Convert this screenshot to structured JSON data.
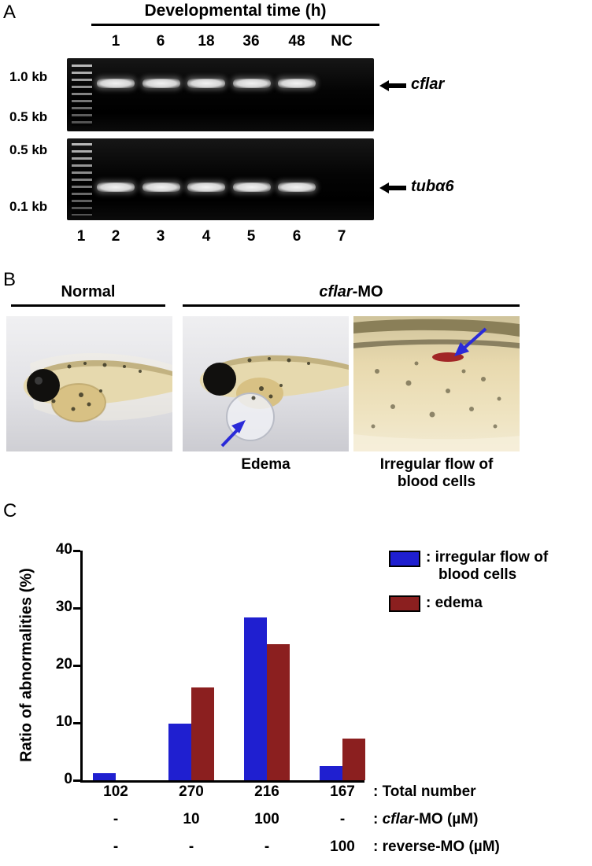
{
  "figure": {
    "panelA_label": "A",
    "panelB_label": "B",
    "panelC_label": "C"
  },
  "panelA": {
    "title": "Developmental time (h)",
    "lane_labels": [
      "1",
      "6",
      "18",
      "36",
      "48",
      "NC"
    ],
    "lane_numbers": [
      "1",
      "2",
      "3",
      "4",
      "5",
      "6",
      "7"
    ],
    "gel1": {
      "marker_top": "1.0 kb",
      "marker_bottom": "0.5 kb",
      "gene": "cflar",
      "bands": [
        1,
        1,
        1,
        1,
        1,
        0
      ]
    },
    "gel2": {
      "marker_top": "0.5 kb",
      "marker_bottom": "0.1 kb",
      "gene": "tubα6",
      "bands": [
        1,
        1,
        1,
        1,
        1,
        0
      ]
    }
  },
  "panelB": {
    "normal_title": "Normal",
    "mo_title_italic": "cflar",
    "mo_title_rest": "-MO",
    "caption_edema": "Edema",
    "caption_flow_line1": "Irregular flow of",
    "caption_flow_line2": "blood cells"
  },
  "panelC": {
    "legend_flow_line1": ": irregular flow of",
    "legend_flow_line2": "blood cells",
    "legend_edema": ": edema"
  },
  "chart_data": {
    "type": "bar",
    "title": "",
    "xlabel": "",
    "ylabel": "Ratio of abnormalities (%)",
    "ylim": [
      0,
      40
    ],
    "yticks": [
      0,
      10,
      20,
      30,
      40
    ],
    "grid": false,
    "legend_position": "top-right",
    "categories": [
      "102",
      "270",
      "216",
      "167"
    ],
    "series": [
      {
        "name": "irregular flow of blood cells",
        "color": "#1f1fd0",
        "values": [
          1.2,
          9.8,
          28.4,
          2.4
        ]
      },
      {
        "name": "edema",
        "color": "#8b1f1f",
        "values": [
          0,
          16.1,
          23.7,
          7.3
        ]
      }
    ],
    "rows": {
      "total": [
        "102",
        "270",
        "216",
        "167"
      ],
      "cflar_mo": [
        "-",
        "10",
        "100",
        "-"
      ],
      "reverse_mo": [
        "-",
        "-",
        "-",
        "100"
      ]
    },
    "row_labels": {
      "total": ": Total number",
      "cflar_prefix": ": ",
      "cflar_italic": "cflar",
      "cflar_suffix": "-MO (µM)",
      "reverse": ": reverse-MO (µM)"
    }
  }
}
